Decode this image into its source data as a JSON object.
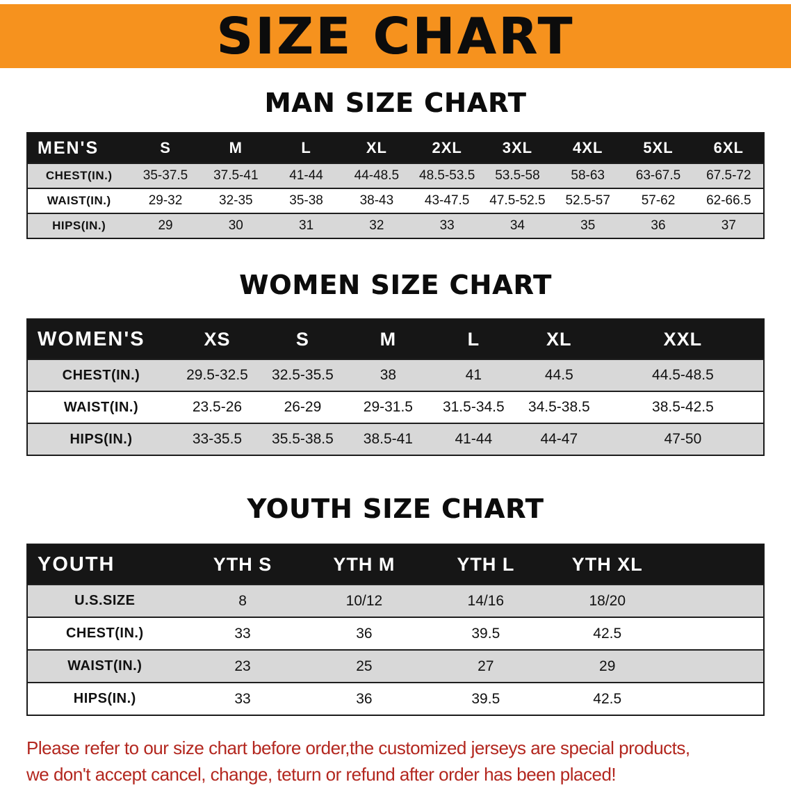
{
  "banner": {
    "title": "SIZE CHART"
  },
  "colors": {
    "banner_orange": "#f6921e",
    "header_black": "#161616",
    "row_gray": "#d8d8d8",
    "disclaimer_red": "#b3271f"
  },
  "sections": [
    {
      "id": "men",
      "heading": "MAN SIZE CHART",
      "table": {
        "label": "MEN'S",
        "columns": [
          "S",
          "M",
          "L",
          "XL",
          "2XL",
          "3XL",
          "4XL",
          "5XL",
          "6XL"
        ],
        "rows": [
          {
            "label": "CHEST(IN.)",
            "values": [
              "35-37.5",
              "37.5-41",
              "41-44",
              "44-48.5",
              "48.5-53.5",
              "53.5-58",
              "58-63",
              "63-67.5",
              "67.5-72"
            ]
          },
          {
            "label": "WAIST(IN.)",
            "values": [
              "29-32",
              "32-35",
              "35-38",
              "38-43",
              "43-47.5",
              "47.5-52.5",
              "52.5-57",
              "57-62",
              "62-66.5"
            ]
          },
          {
            "label": "HIPS(IN.)",
            "values": [
              "29",
              "30",
              "31",
              "32",
              "33",
              "34",
              "35",
              "36",
              "37"
            ]
          }
        ]
      }
    },
    {
      "id": "women",
      "heading": "WOMEN SIZE CHART",
      "table": {
        "label": "WOMEN'S",
        "columns": [
          "XS",
          "S",
          "M",
          "L",
          "XL",
          "XXL"
        ],
        "rows": [
          {
            "label": "CHEST(IN.)",
            "values": [
              "29.5-32.5",
              "32.5-35.5",
              "38",
              "41",
              "44.5",
              "44.5-48.5"
            ]
          },
          {
            "label": "WAIST(IN.)",
            "values": [
              "23.5-26",
              "26-29",
              "29-31.5",
              "31.5-34.5",
              "34.5-38.5",
              "38.5-42.5"
            ]
          },
          {
            "label": "HIPS(IN.)",
            "values": [
              "33-35.5",
              "35.5-38.5",
              "38.5-41",
              "41-44",
              "44-47",
              "47-50"
            ]
          }
        ]
      }
    },
    {
      "id": "youth",
      "heading": "YOUTH SIZE CHART",
      "table": {
        "label": "YOUTH",
        "columns": [
          "YTH S",
          "YTH M",
          "YTH L",
          "YTH XL"
        ],
        "rows": [
          {
            "label": "U.S.SIZE",
            "values": [
              "8",
              "10/12",
              "14/16",
              "18/20"
            ]
          },
          {
            "label": "CHEST(IN.)",
            "values": [
              "33",
              "36",
              "39.5",
              "42.5"
            ]
          },
          {
            "label": "WAIST(IN.)",
            "values": [
              "23",
              "25",
              "27",
              "29"
            ]
          },
          {
            "label": "HIPS(IN.)",
            "values": [
              "33",
              "36",
              "39.5",
              "42.5"
            ]
          }
        ]
      }
    }
  ],
  "disclaimer": {
    "line1": "Please refer to our size chart before order,the customized jerseys are special products,",
    "line2": "we don't accept cancel, change, teturn or refund after order has been placed!"
  }
}
